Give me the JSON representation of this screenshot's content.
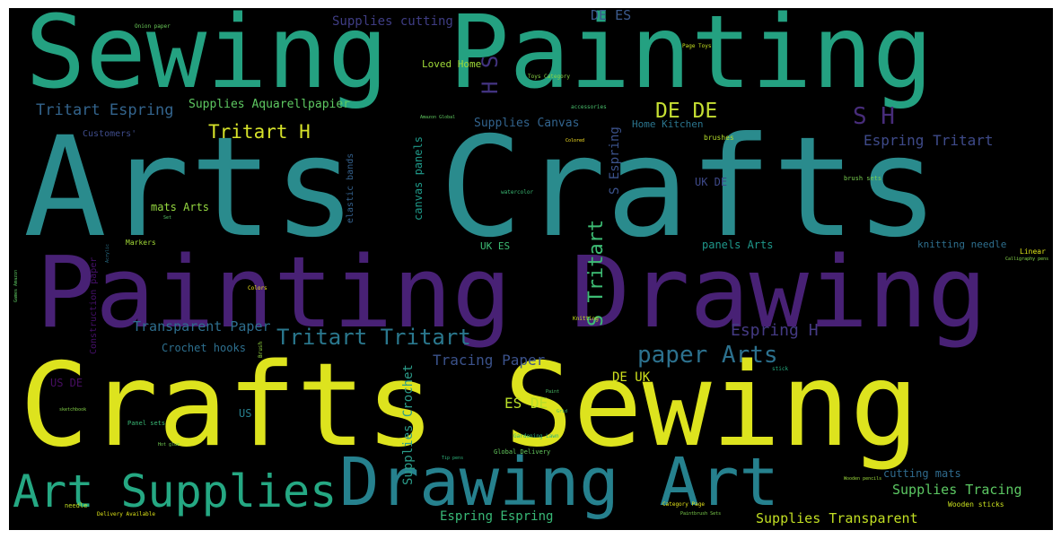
{
  "palette": {
    "background": "#000000",
    "yellow": "#dce51d",
    "green": "#2fb27b",
    "teal": "#2a8c8b",
    "blue": "#34618d",
    "indigo": "#433c87",
    "purple": "#47196c",
    "lime": "#8fd33f"
  },
  "words": [
    {
      "text": "Sewing Painting",
      "color": "#24a181"
    },
    {
      "text": "Arts Crafts",
      "color": "#2a8b8d"
    },
    {
      "text": "Painting Drawing",
      "color": "#482175"
    },
    {
      "text": "Crafts Sewing",
      "color": "#dde31e"
    },
    {
      "text": "Drawing Art",
      "color": "#26818e"
    },
    {
      "text": "Art Supplies",
      "color": "#25a883"
    },
    {
      "text": "Tritart Tritart",
      "color": "#2a788e"
    },
    {
      "text": "paper Arts",
      "color": "#2c718e"
    },
    {
      "text": "Tritart H",
      "color": "#d6e22a"
    },
    {
      "text": "DE DE",
      "color": "#c6df33"
    },
    {
      "text": "S H",
      "color": "#472c7a"
    },
    {
      "text": "H S",
      "color": "#42337f"
    },
    {
      "text": "S Tritart",
      "color": "#3dbc74"
    },
    {
      "text": "Tritart Espring",
      "color": "#33648d"
    },
    {
      "text": "Espring Tritart",
      "color": "#3e4a89"
    },
    {
      "text": "Espring H",
      "color": "#443a83"
    },
    {
      "text": "Tracing Paper",
      "color": "#3b528b"
    },
    {
      "text": "Transparent Paper",
      "color": "#2e6e8e"
    },
    {
      "text": "Supplies Tracing",
      "color": "#5cc863"
    },
    {
      "text": "Supplies Transparent",
      "color": "#c2df23"
    },
    {
      "text": "Supplies Canvas",
      "color": "#32648e"
    },
    {
      "text": "Supplies Aquarellpapier",
      "color": "#5ec962"
    },
    {
      "text": "Supplies cutting",
      "color": "#3f3d84"
    },
    {
      "text": "Supplies Crochet",
      "color": "#2b9c8a"
    },
    {
      "text": "Espring Espring",
      "color": "#38b977"
    },
    {
      "text": "DE ES",
      "color": "#3b5a8c"
    },
    {
      "text": "ES DE",
      "color": "#b8de29"
    },
    {
      "text": "DE UK",
      "color": "#d0e11c"
    },
    {
      "text": "UK DE",
      "color": "#3e4989"
    },
    {
      "text": "UK ES",
      "color": "#3dbc74"
    },
    {
      "text": "US DE",
      "color": "#470e61"
    },
    {
      "text": "US",
      "color": "#277f8e"
    },
    {
      "text": "Loved Home",
      "color": "#a0da39"
    },
    {
      "text": "Home Kitchen",
      "color": "#2b758e"
    },
    {
      "text": "Crochet hooks",
      "color": "#2d6f8e"
    },
    {
      "text": "mats Arts",
      "color": "#95d840"
    },
    {
      "text": "panels Arts",
      "color": "#1f988b"
    },
    {
      "text": "cutting mats",
      "color": "#2f6b8e"
    },
    {
      "text": "knitting needle",
      "color": "#2e6f8e"
    },
    {
      "text": "Customers'",
      "color": "#3e4c8a"
    },
    {
      "text": "S Espring",
      "color": "#3b528b"
    },
    {
      "text": "canvas panels",
      "color": "#1f9a8a"
    },
    {
      "text": "elastic bands",
      "color": "#34618d"
    },
    {
      "text": "Construction paper",
      "color": "#46106b"
    },
    {
      "text": "Markers",
      "color": "#a2da37"
    },
    {
      "text": "brushes",
      "color": "#b5de2b"
    },
    {
      "text": "brush sets",
      "color": "#7ad151"
    },
    {
      "text": "watercolor",
      "color": "#3bbb75"
    },
    {
      "text": "Linear",
      "color": "#dde318"
    },
    {
      "text": "Calligraphy pens",
      "color": "#85d54a"
    },
    {
      "text": "Onion paper",
      "color": "#6ccd5a"
    },
    {
      "text": "Page Toys",
      "color": "#c5e021"
    },
    {
      "text": "Toys Category",
      "color": "#8bd646"
    },
    {
      "text": "Amazon Global",
      "color": "#60ca60"
    },
    {
      "text": "accessories",
      "color": "#4ac16d"
    },
    {
      "text": "Colored",
      "color": "#fde725"
    },
    {
      "text": "Colors",
      "color": "#f1e51d"
    },
    {
      "text": "Knitting",
      "color": "#c8e020"
    },
    {
      "text": "Brush",
      "color": "#95d840"
    },
    {
      "text": "Global Delivery",
      "color": "#65cb5e"
    },
    {
      "text": "Delivery Available",
      "color": "#dde318"
    },
    {
      "text": "Category Page",
      "color": "#e5e419"
    },
    {
      "text": "needle",
      "color": "#c2df23"
    },
    {
      "text": "Wooden sticks",
      "color": "#cae11f"
    },
    {
      "text": "Paintbrush Sets",
      "color": "#7fd34e"
    },
    {
      "text": "Wooden pencils",
      "color": "#9bd93c"
    },
    {
      "text": "Gardening Lawn",
      "color": "#2db27d"
    },
    {
      "text": "Panel sets",
      "color": "#3aba76"
    },
    {
      "text": "Hot glue",
      "color": "#75d054"
    },
    {
      "text": "Games Amazon",
      "color": "#5ec962"
    },
    {
      "text": "sketchbook",
      "color": "#86d549"
    },
    {
      "text": "Paint",
      "color": "#4ec36b"
    },
    {
      "text": "Set",
      "color": "#55c667"
    },
    {
      "text": "stick",
      "color": "#26ad81"
    },
    {
      "text": "Grid",
      "color": "#3fbc73"
    },
    {
      "text": "Acrylic",
      "color": "#2c738e"
    },
    {
      "text": "Tip pens",
      "color": "#2fb47c"
    }
  ]
}
